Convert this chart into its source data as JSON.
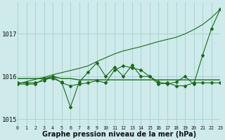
{
  "bg_color": "#ceeaea",
  "grid_color": "#aad4d4",
  "line_color": "#1a6b1a",
  "xlabel": "Graphe pression niveau de la mer (hPa)",
  "xlabel_fontsize": 7,
  "xlim": [
    0,
    23
  ],
  "ylim": [
    1014.85,
    1017.75
  ],
  "yticks": [
    1015,
    1016,
    1017
  ],
  "xticks": [
    0,
    1,
    2,
    3,
    4,
    5,
    6,
    7,
    8,
    9,
    10,
    11,
    12,
    13,
    14,
    15,
    16,
    17,
    18,
    19,
    20,
    21,
    22,
    23
  ],
  "series_main": [
    1015.82,
    1015.82,
    1015.82,
    1015.95,
    1015.95,
    1015.87,
    1015.28,
    1015.87,
    1016.1,
    1016.32,
    1016.0,
    1016.22,
    1016.0,
    1016.27,
    1016.0,
    1016.0,
    1015.87,
    1015.82,
    1015.87,
    1016.0,
    1015.82,
    1016.5,
    1017.12,
    1017.58
  ],
  "series_flat": [
    1015.95,
    1015.95,
    1015.95,
    1015.95,
    1016.0,
    1015.95,
    1015.95,
    1015.92,
    1015.92,
    1015.92,
    1015.92,
    1015.92,
    1015.92,
    1015.92,
    1015.92,
    1015.92,
    1015.92,
    1015.92,
    1015.92,
    1015.92,
    1015.92,
    1015.92,
    1015.92,
    1015.92
  ],
  "series_trend": [
    1015.82,
    1015.88,
    1015.93,
    1015.98,
    1016.04,
    1016.09,
    1016.14,
    1016.19,
    1016.25,
    1016.35,
    1016.44,
    1016.53,
    1016.6,
    1016.65,
    1016.7,
    1016.76,
    1016.82,
    1016.87,
    1016.92,
    1017.0,
    1017.1,
    1017.22,
    1017.38,
    1017.58
  ],
  "series_secondary": [
    1015.85,
    1015.85,
    1015.85,
    1015.9,
    1016.0,
    1015.85,
    1015.78,
    1015.82,
    1015.85,
    1015.9,
    1015.85,
    1016.15,
    1016.25,
    1016.2,
    1016.15,
    1016.0,
    1015.82,
    1015.85,
    1015.78,
    1015.78,
    1015.85,
    1015.85,
    1015.85,
    1015.85
  ]
}
